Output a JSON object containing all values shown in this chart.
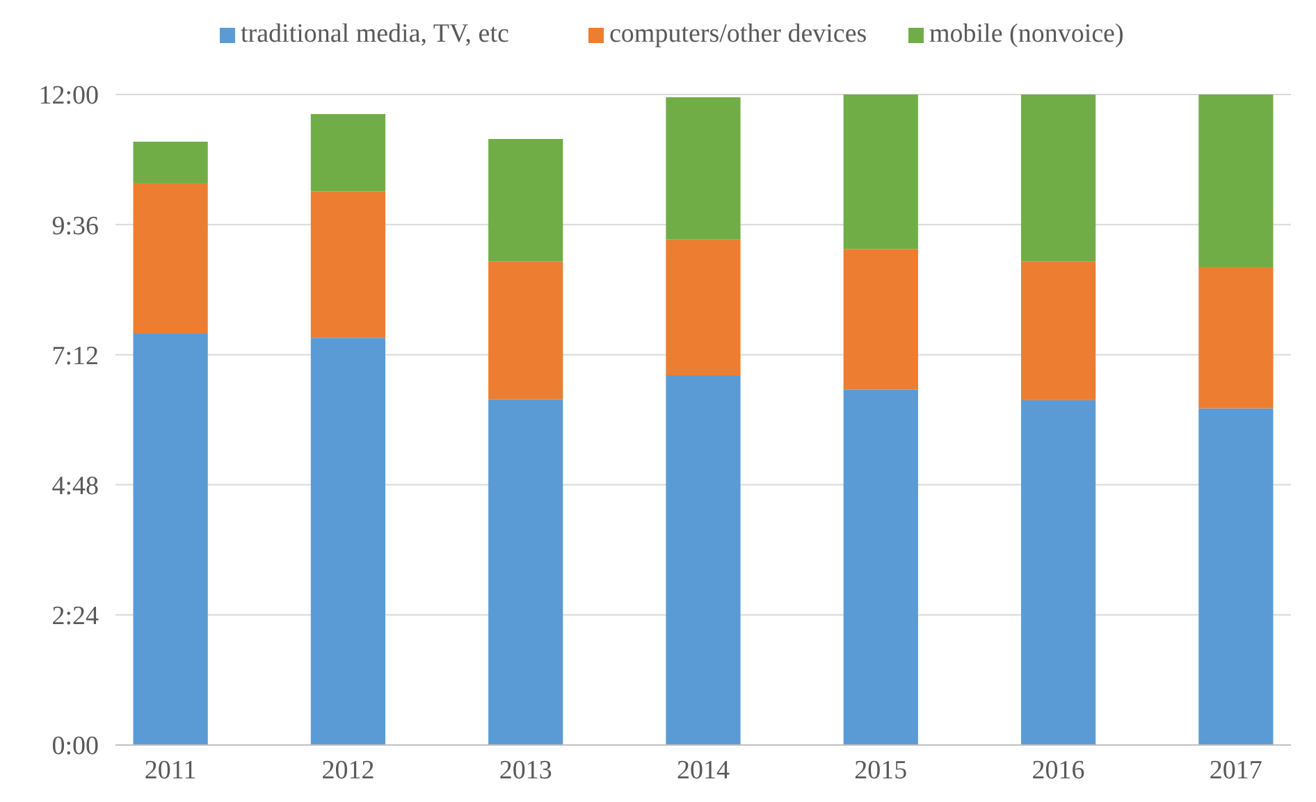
{
  "chart_data": {
    "type": "bar",
    "stacked": true,
    "categories": [
      "2011",
      "2012",
      "2013",
      "2014",
      "2015",
      "2016",
      "2017"
    ],
    "series": [
      {
        "name": "traditional media, TV, etc",
        "color": "#5b9bd5",
        "values": [
          7.59,
          7.51,
          6.38,
          6.82,
          6.56,
          6.36,
          6.21
        ]
      },
      {
        "name": "computers/other devices",
        "color": "#ed7d31",
        "values": [
          2.77,
          2.7,
          2.54,
          2.51,
          2.59,
          2.56,
          2.61
        ]
      },
      {
        "name": "mobile (nonvoice)",
        "color": "#70ad47",
        "values": [
          0.77,
          1.43,
          2.26,
          2.62,
          2.85,
          3.08,
          3.18
        ]
      }
    ],
    "ylim": [
      0,
      12
    ],
    "yticks": [
      {
        "value": 0,
        "label": "0:00"
      },
      {
        "value": 2.4,
        "label": "2:24"
      },
      {
        "value": 4.8,
        "label": "4:48"
      },
      {
        "value": 7.2,
        "label": "7:12"
      },
      {
        "value": 9.6,
        "label": "9:36"
      },
      {
        "value": 12,
        "label": "12:00"
      }
    ],
    "grid": "y",
    "legend": "top"
  }
}
